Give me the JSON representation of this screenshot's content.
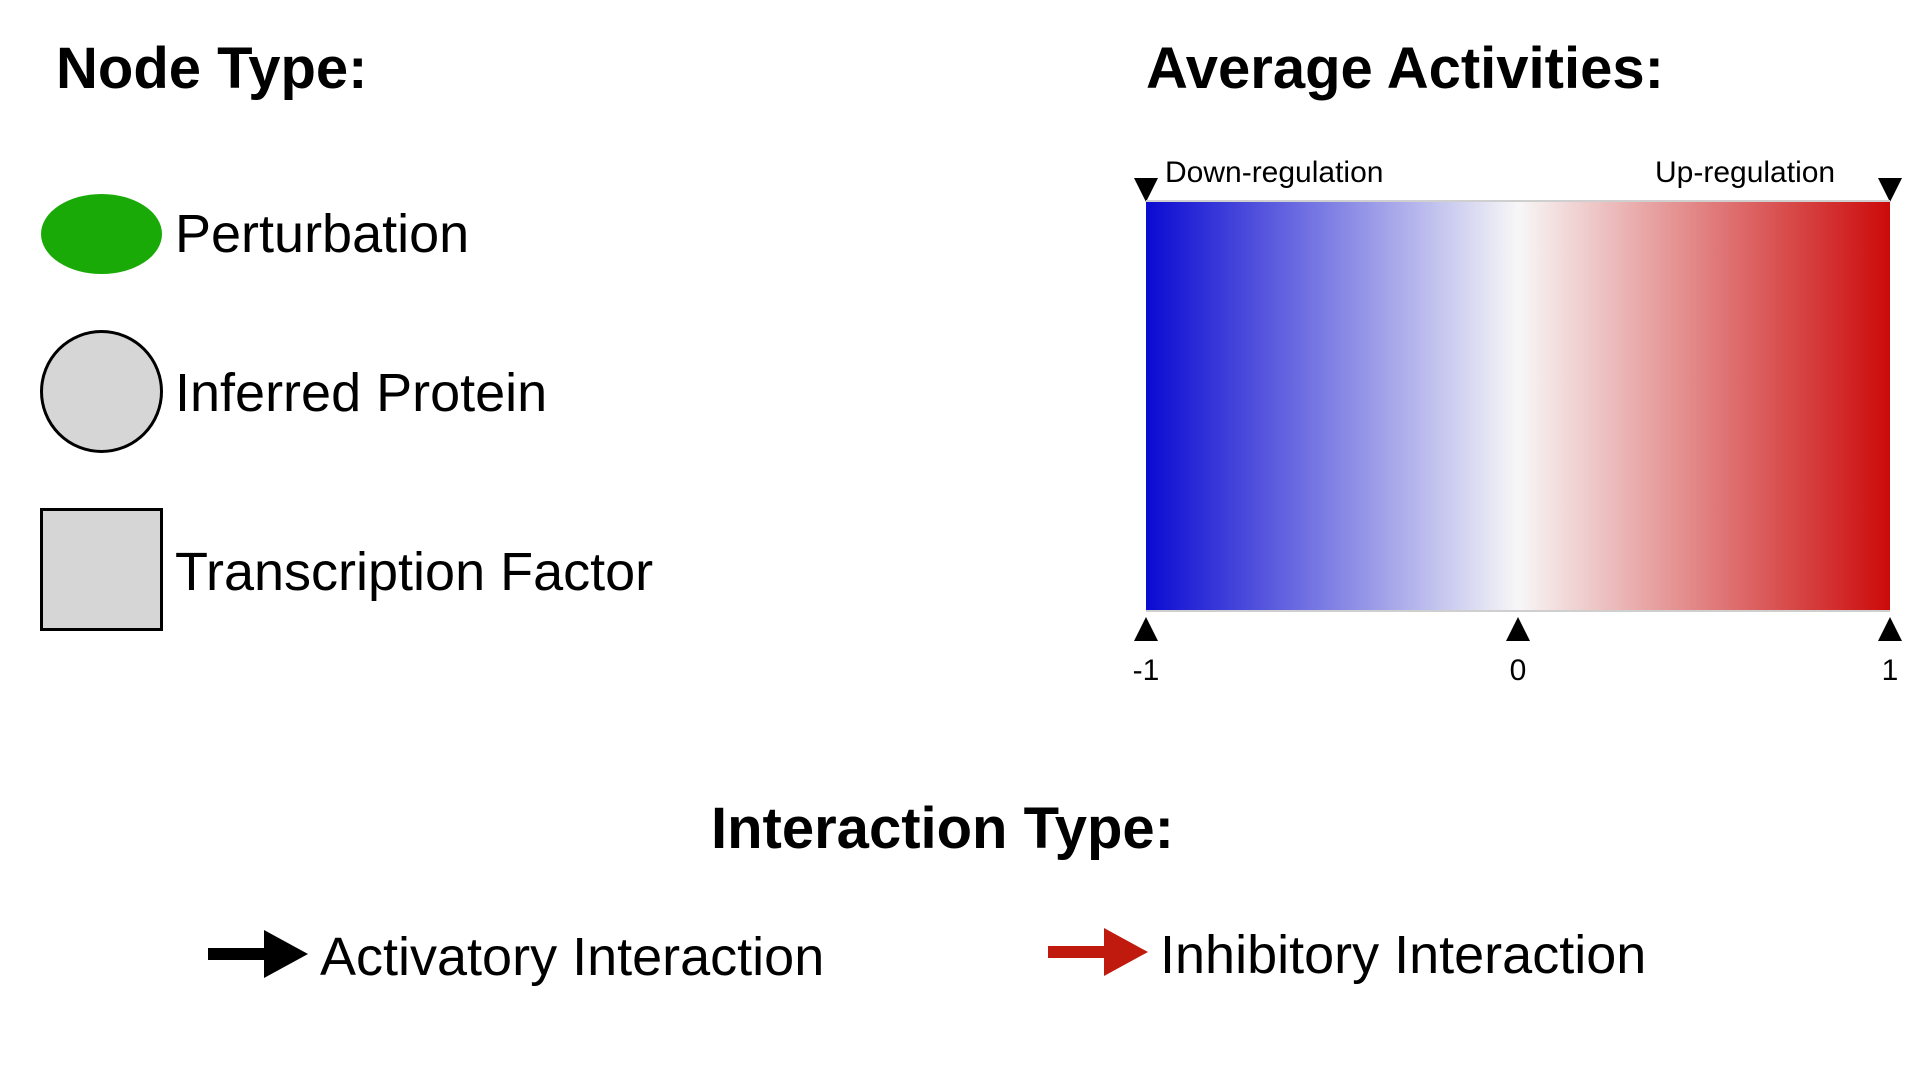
{
  "node_type": {
    "heading": "Node Type:",
    "items": [
      {
        "label": "Perturbation",
        "shape": "ellipse",
        "fill": "#1aaa08",
        "stroke": "none"
      },
      {
        "label": "Inferred Protein",
        "shape": "circle",
        "fill": "#d6d6d6",
        "stroke": "#000000"
      },
      {
        "label": "Transcription Factor",
        "shape": "square",
        "fill": "#d6d6d6",
        "stroke": "#000000"
      }
    ]
  },
  "average_activities": {
    "heading": "Average Activities:",
    "left_caption": "Down-regulation",
    "right_caption": "Up-regulation",
    "scale": {
      "min": -1,
      "mid": 0,
      "max": 1,
      "tick_labels": [
        "-1",
        "0",
        "1"
      ],
      "colors": {
        "min": "#0a0ad2",
        "mid": "#f7f7f7",
        "max": "#cc0a0a"
      }
    }
  },
  "interaction_type": {
    "heading": "Interaction Type:",
    "items": [
      {
        "label": "Activatory Interaction",
        "arrow_color": "#000000",
        "icon": "black-arrow-icon"
      },
      {
        "label": "Inhibitory Interaction",
        "arrow_color": "#c01a0e",
        "icon": "red-arrow-icon"
      }
    ]
  }
}
